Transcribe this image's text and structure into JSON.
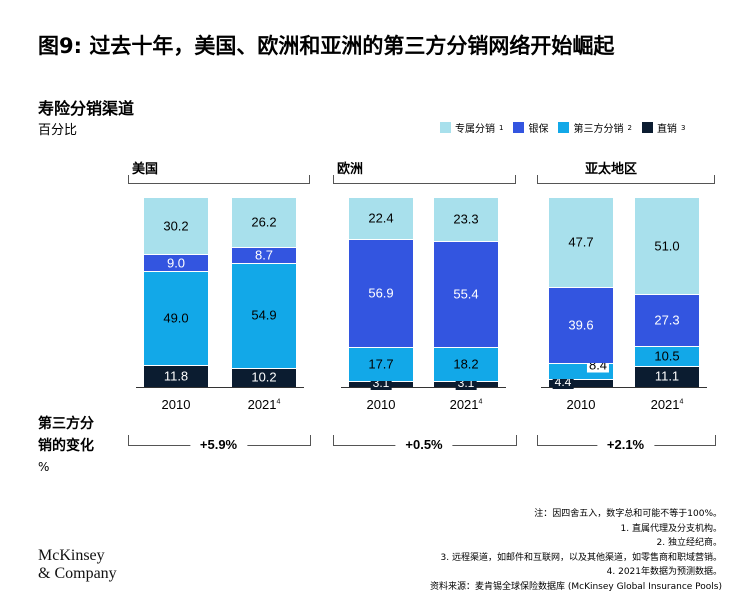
{
  "title": "图9: 过去十年，美国、欧洲和亚洲的第三方分销网络开始崛起",
  "subtitle": "寿险分销渠道",
  "unit_label": "百分比",
  "legend": [
    {
      "key": "agent",
      "label": "专属分销",
      "sup": "1",
      "color": "#a8e0ec"
    },
    {
      "key": "banca",
      "label": "银保",
      "sup": "",
      "color": "#3355e0"
    },
    {
      "key": "third",
      "label": "第三方分销",
      "sup": "2",
      "color": "#12a8e8"
    },
    {
      "key": "direct",
      "label": "直销",
      "sup": "3",
      "color": "#0b1c30"
    }
  ],
  "chart_data": {
    "type": "bar",
    "stacked": true,
    "categories": [
      "2010",
      "2021"
    ],
    "category_sup": [
      "",
      "4"
    ],
    "ylim": [
      0,
      100
    ],
    "series_order": [
      "direct",
      "third",
      "banca",
      "agent"
    ],
    "panels": [
      {
        "name": "美国",
        "series": {
          "direct": [
            11.8,
            10.2
          ],
          "third": [
            49.0,
            54.9
          ],
          "banca": [
            9.0,
            8.7
          ],
          "agent": [
            30.2,
            26.2
          ]
        }
      },
      {
        "name": "欧洲",
        "series": {
          "direct": [
            3.1,
            3.1
          ],
          "third": [
            17.7,
            18.2
          ],
          "banca": [
            56.9,
            55.4
          ],
          "agent": [
            22.4,
            23.3
          ]
        }
      },
      {
        "name": "亚太地区",
        "series": {
          "direct": [
            4.4,
            11.1
          ],
          "third": [
            8.4,
            10.5
          ],
          "banca": [
            39.6,
            27.3
          ],
          "agent": [
            47.7,
            51.0
          ]
        }
      }
    ],
    "changes": [
      "+5.9%",
      "+0.5%",
      "+2.1%"
    ]
  },
  "change_title_line1": "第三方分",
  "change_title_line2": "销的变化",
  "change_unit": "%",
  "notes": [
    "注：因四舍五入，数字总和可能不等于100%。",
    "1. 直属代理及分支机构。",
    "2. 独立经纪商。",
    "3. 远程渠道，如邮件和互联网，以及其他渠道，如零售商和职域营销。",
    "4. 2021年数据为预测数据。",
    "资料来源：麦肯锡全球保险数据库 (McKinsey Global Insurance Pools)"
  ],
  "logo_line1": "McKinsey",
  "logo_line2": "& Company"
}
